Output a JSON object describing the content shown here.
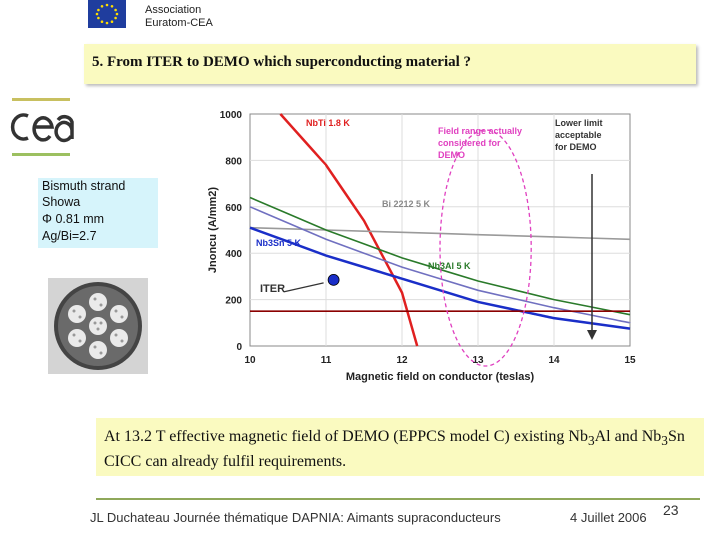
{
  "header": {
    "org_line1": "Association",
    "org_line2": "Euratom-CEA"
  },
  "title": "5. From ITER to DEMO which superconducting material ?",
  "strand_info": [
    "Bismuth strand",
    "Showa",
    "Φ 0.81 mm",
    "Ag/Bi=2.7"
  ],
  "caption": {
    "part1": "At 13.2  T effective magnetic field of DEMO (EPPCS model C) existing Nb",
    "sub1": "3",
    "part2": "Al and Nb",
    "sub2": "3",
    "part3": "Sn CICC can already fulfil requirements."
  },
  "footer": {
    "left": "JL Duchateau  Journée thématique DAPNIA: Aimants supraconducteurs",
    "date": "4  Juillet  2006",
    "page": "23"
  },
  "colors": {
    "title_box": "#fafac0",
    "strand_box": "#d6f4fb",
    "footer_rule": "#8fa85a"
  },
  "chart_data": {
    "type": "line",
    "xlabel": "Magnetic field on conductor (teslas)",
    "ylabel": "Jnoncu (A/mm2)",
    "xlim": [
      10,
      15
    ],
    "ylim": [
      0,
      1000
    ],
    "xticks": [
      "10",
      "11",
      "12",
      "13",
      "14",
      "15"
    ],
    "yticks": [
      "0",
      "200",
      "400",
      "600",
      "800",
      "1000"
    ],
    "series": [
      {
        "name": "NbTi 1.8 K",
        "color": "#e02020",
        "x": [
          10.4,
          11,
          11.5,
          12,
          12.2
        ],
        "y": [
          1000,
          780,
          540,
          230,
          0
        ]
      },
      {
        "name": "Bi 2212  5 K",
        "color": "#9a9a9a",
        "x": [
          10,
          11,
          12,
          13,
          14,
          15
        ],
        "y": [
          510,
          500,
          490,
          480,
          470,
          460
        ]
      },
      {
        "name": "",
        "color": "#2a7a2a",
        "x": [
          10,
          11,
          12,
          13,
          14,
          15
        ],
        "y": [
          640,
          500,
          380,
          280,
          200,
          135
        ]
      },
      {
        "name": "",
        "color": "#7070c0",
        "x": [
          10,
          11,
          12,
          13,
          14,
          15
        ],
        "y": [
          600,
          460,
          340,
          240,
          165,
          100
        ]
      },
      {
        "name": "Nb3Sn 5 K",
        "color": "#1a2ec8",
        "x": [
          10,
          11,
          12,
          13,
          14,
          15
        ],
        "y": [
          510,
          390,
          290,
          190,
          120,
          75
        ]
      },
      {
        "name": "",
        "color": "#8b0000",
        "x": [
          10,
          15
        ],
        "y": [
          150,
          150
        ]
      }
    ],
    "labels": [
      {
        "text": "NbTi 1.8 K",
        "color": "#e02020"
      },
      {
        "text": "Field range actually considered for DEMO",
        "color": "#e040c0"
      },
      {
        "text": "Lower limit acceptable for DEMO",
        "color": "#333333"
      },
      {
        "text": "Bi 2212  5 K",
        "color": "#888888"
      },
      {
        "text": "Nb3Sn 5 K",
        "color": "#1a2ec8"
      },
      {
        "text": "Nb3Al 5 K",
        "color": "#2a7a2a"
      },
      {
        "text": "ITER",
        "color": "#333333"
      }
    ],
    "iter_point": {
      "x": 11.1,
      "y": 285
    },
    "demo_field_range": [
      12.5,
      13.7
    ],
    "lower_limit_field": 14.5
  }
}
